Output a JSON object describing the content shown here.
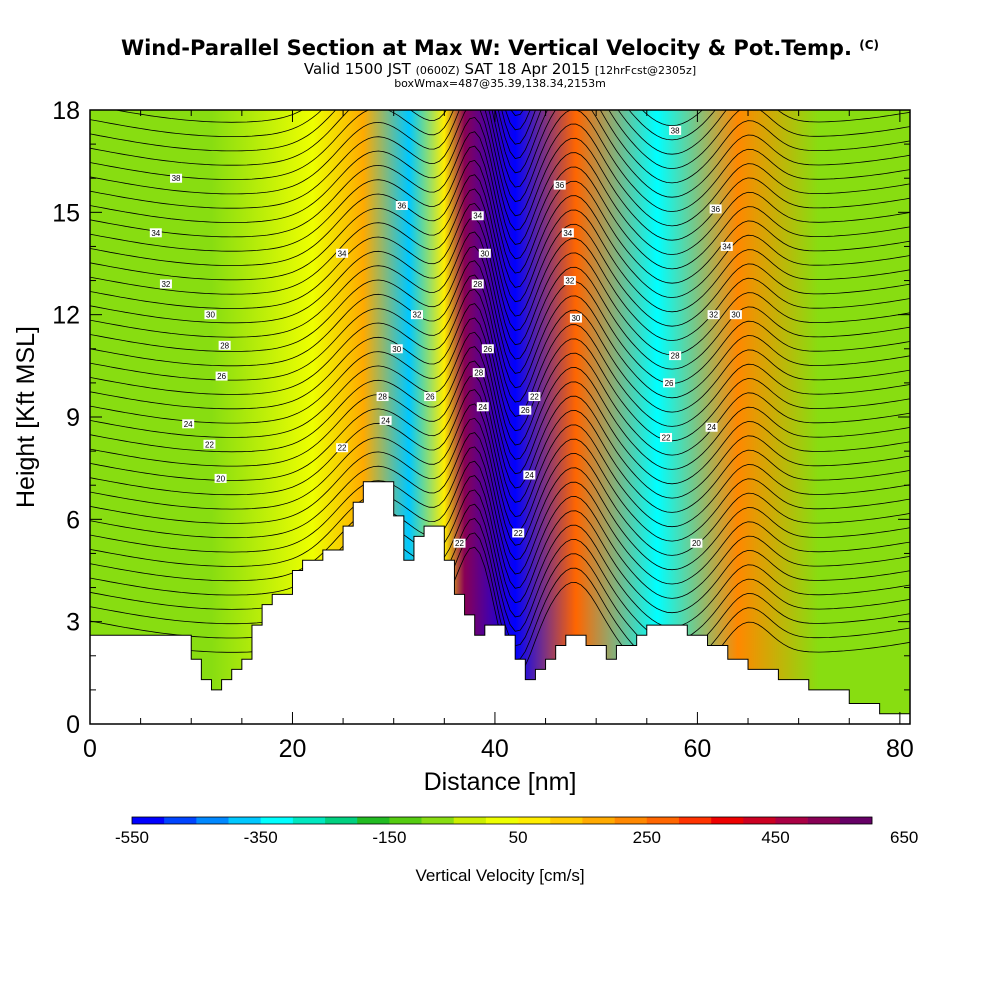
{
  "header": {
    "title": "Wind-Parallel Section at Max W: Vertical Velocity & Pot.Temp.",
    "title_mark": "(C)",
    "sub_a": "Valid 1500 JST ",
    "sub_b": "(0600Z)",
    "sub_c": " SAT 18 Apr 2015 ",
    "sub_d": "[12hrFcst@2305z]",
    "line3": "boxWmax=487@35.39,138.34,2153m"
  },
  "chart_data": {
    "type": "heatmap",
    "xlabel": "Distance [nm]",
    "ylabel": "Height [Kft MSL]",
    "xlim": [
      0,
      81
    ],
    "ylim": [
      0,
      18
    ],
    "x_ticks": [
      "0",
      "20",
      "40",
      "60",
      "80"
    ],
    "y_ticks": [
      "0",
      "3",
      "6",
      "9",
      "12",
      "15",
      "18"
    ],
    "grid": false,
    "colorbar": {
      "label": "Vertical Velocity [cm/s]",
      "tick_labels": [
        "-550",
        "-350",
        "-150",
        "50",
        "250",
        "450",
        "650"
      ],
      "colors": [
        "#0000ff",
        "#0044ff",
        "#0088ff",
        "#00c8ff",
        "#00ffff",
        "#00e8c0",
        "#00d080",
        "#22bb22",
        "#55cc11",
        "#88dd11",
        "#ccee00",
        "#eeff00",
        "#ffee00",
        "#ffcc00",
        "#ffaa00",
        "#ff8800",
        "#ff6600",
        "#ff3300",
        "#ee0000",
        "#cc0022",
        "#aa0044",
        "#880055",
        "#660066"
      ]
    },
    "velocity_features": [
      {
        "x": 12,
        "w": -120
      },
      {
        "x": 22,
        "w": 10
      },
      {
        "x": 27,
        "w": 150
      },
      {
        "x": 31.5,
        "w": -420
      },
      {
        "x": 35,
        "w": 50
      },
      {
        "x": 37,
        "w": 487
      },
      {
        "x": 42,
        "w": -550
      },
      {
        "x": 48,
        "w": 250
      },
      {
        "x": 56,
        "w": -350
      },
      {
        "x": 64,
        "w": 180
      },
      {
        "x": 72,
        "w": -100
      }
    ],
    "terrain_kft": [
      [
        0,
        2.6
      ],
      [
        1,
        2.6
      ],
      [
        2,
        2.6
      ],
      [
        3,
        2.6
      ],
      [
        4,
        2.6
      ],
      [
        5,
        2.6
      ],
      [
        6,
        2.6
      ],
      [
        7,
        2.6
      ],
      [
        8,
        2.6
      ],
      [
        9,
        2.6
      ],
      [
        10,
        1.9
      ],
      [
        11,
        1.3
      ],
      [
        12,
        1.0
      ],
      [
        13,
        1.3
      ],
      [
        14,
        1.6
      ],
      [
        15,
        1.9
      ],
      [
        16,
        2.9
      ],
      [
        17,
        3.5
      ],
      [
        18,
        3.8
      ],
      [
        19,
        3.8
      ],
      [
        20,
        4.5
      ],
      [
        21,
        4.8
      ],
      [
        22,
        4.8
      ],
      [
        23,
        5.1
      ],
      [
        24,
        5.1
      ],
      [
        25,
        5.8
      ],
      [
        26,
        6.5
      ],
      [
        27,
        7.1
      ],
      [
        28,
        7.1
      ],
      [
        29,
        7.1
      ],
      [
        30,
        6.1
      ],
      [
        31,
        4.8
      ],
      [
        32,
        5.5
      ],
      [
        33,
        5.8
      ],
      [
        34,
        5.8
      ],
      [
        35,
        4.8
      ],
      [
        36,
        3.8
      ],
      [
        37,
        3.2
      ],
      [
        38,
        2.6
      ],
      [
        39,
        2.9
      ],
      [
        40,
        2.9
      ],
      [
        41,
        2.6
      ],
      [
        42,
        1.9
      ],
      [
        43,
        1.3
      ],
      [
        44,
        1.6
      ],
      [
        45,
        1.9
      ],
      [
        46,
        2.3
      ],
      [
        47,
        2.6
      ],
      [
        48,
        2.6
      ],
      [
        49,
        2.3
      ],
      [
        50,
        2.3
      ],
      [
        51,
        1.9
      ],
      [
        52,
        2.3
      ],
      [
        53,
        2.3
      ],
      [
        54,
        2.6
      ],
      [
        55,
        2.9
      ],
      [
        56,
        2.9
      ],
      [
        57,
        2.9
      ],
      [
        58,
        2.9
      ],
      [
        59,
        2.6
      ],
      [
        60,
        2.6
      ],
      [
        61,
        2.3
      ],
      [
        62,
        2.3
      ],
      [
        63,
        1.9
      ],
      [
        64,
        1.9
      ],
      [
        65,
        1.6
      ],
      [
        66,
        1.6
      ],
      [
        67,
        1.6
      ],
      [
        68,
        1.3
      ],
      [
        69,
        1.3
      ],
      [
        70,
        1.3
      ],
      [
        71,
        1.0
      ],
      [
        72,
        1.0
      ],
      [
        73,
        1.0
      ],
      [
        74,
        1.0
      ],
      [
        75,
        0.6
      ],
      [
        76,
        0.6
      ],
      [
        77,
        0.6
      ],
      [
        78,
        0.3
      ],
      [
        79,
        0.3
      ],
      [
        80,
        0.3
      ],
      [
        81,
        0.3
      ]
    ],
    "theta_labels": [
      {
        "text": "38",
        "x": 8.5,
        "y": 16.0
      },
      {
        "text": "34",
        "x": 6.5,
        "y": 14.4
      },
      {
        "text": "32",
        "x": 7.5,
        "y": 12.9
      },
      {
        "text": "30",
        "x": 11.9,
        "y": 12.0
      },
      {
        "text": "28",
        "x": 13.3,
        "y": 11.1
      },
      {
        "text": "26",
        "x": 13.0,
        "y": 10.2
      },
      {
        "text": "24",
        "x": 9.7,
        "y": 8.8
      },
      {
        "text": "22",
        "x": 11.8,
        "y": 8.2
      },
      {
        "text": "20",
        "x": 12.9,
        "y": 7.2
      },
      {
        "text": "36",
        "x": 30.8,
        "y": 15.2
      },
      {
        "text": "34",
        "x": 24.9,
        "y": 13.8
      },
      {
        "text": "32",
        "x": 32.3,
        "y": 12.0
      },
      {
        "text": "30",
        "x": 30.3,
        "y": 11.0
      },
      {
        "text": "28",
        "x": 28.9,
        "y": 9.6
      },
      {
        "text": "26",
        "x": 33.6,
        "y": 9.6
      },
      {
        "text": "24",
        "x": 29.2,
        "y": 8.9
      },
      {
        "text": "22",
        "x": 24.9,
        "y": 8.1
      },
      {
        "text": "34",
        "x": 38.3,
        "y": 14.9
      },
      {
        "text": "30",
        "x": 39.0,
        "y": 13.8
      },
      {
        "text": "28",
        "x": 38.3,
        "y": 12.9
      },
      {
        "text": "26",
        "x": 39.3,
        "y": 11.0
      },
      {
        "text": "28",
        "x": 38.4,
        "y": 10.3
      },
      {
        "text": "24",
        "x": 38.8,
        "y": 9.3
      },
      {
        "text": "22",
        "x": 36.5,
        "y": 5.3
      },
      {
        "text": "26",
        "x": 43.0,
        "y": 9.2
      },
      {
        "text": "22",
        "x": 43.9,
        "y": 9.6
      },
      {
        "text": "24",
        "x": 43.4,
        "y": 7.3
      },
      {
        "text": "22",
        "x": 42.3,
        "y": 5.6
      },
      {
        "text": "36",
        "x": 46.4,
        "y": 15.8
      },
      {
        "text": "34",
        "x": 47.2,
        "y": 14.4
      },
      {
        "text": "32",
        "x": 47.4,
        "y": 13.0
      },
      {
        "text": "30",
        "x": 48.0,
        "y": 11.9
      },
      {
        "text": "38",
        "x": 57.8,
        "y": 17.4
      },
      {
        "text": "36",
        "x": 61.8,
        "y": 15.1
      },
      {
        "text": "34",
        "x": 62.9,
        "y": 14.0
      },
      {
        "text": "32",
        "x": 61.6,
        "y": 12.0
      },
      {
        "text": "30",
        "x": 63.8,
        "y": 12.0
      },
      {
        "text": "28",
        "x": 57.8,
        "y": 10.8
      },
      {
        "text": "26",
        "x": 57.2,
        "y": 10.0
      },
      {
        "text": "24",
        "x": 61.4,
        "y": 8.7
      },
      {
        "text": "22",
        "x": 56.9,
        "y": 8.4
      },
      {
        "text": "20",
        "x": 59.9,
        "y": 5.3
      }
    ]
  }
}
